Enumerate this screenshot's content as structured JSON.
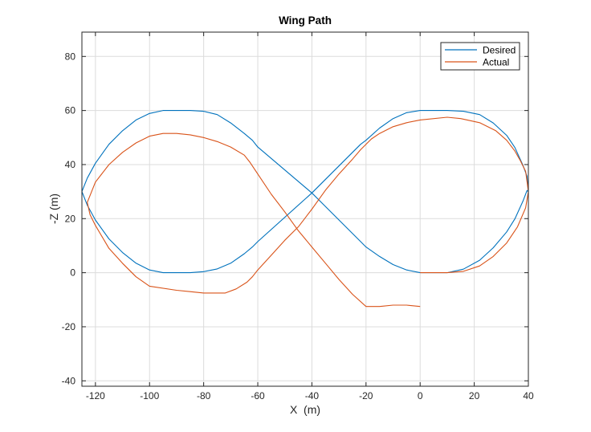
{
  "chart_data": {
    "type": "line",
    "title": "Wing Path",
    "xlabel": "X  (m)",
    "ylabel": "-Z (m)",
    "xlim": [
      -125,
      40
    ],
    "ylim": [
      -42,
      89
    ],
    "xticks": [
      -120,
      -100,
      -80,
      -60,
      -40,
      -20,
      0,
      20,
      40
    ],
    "yticks": [
      -40,
      -20,
      0,
      20,
      40,
      60,
      80
    ],
    "grid": true,
    "legend_position": "top-right",
    "series": [
      {
        "name": "Desired",
        "color": "#0072BD",
        "x": [
          0,
          10,
          16,
          22,
          27,
          32,
          35,
          38,
          39.5,
          40,
          39.5,
          38,
          35,
          32,
          27,
          22,
          16,
          10,
          0,
          -5,
          -10,
          -15,
          -20,
          -22,
          -40,
          -60,
          -62,
          -65,
          -70,
          -75,
          -80,
          -85,
          -95,
          -100,
          -105,
          -110,
          -115,
          -120,
          -123,
          -125,
          -123,
          -120,
          -115,
          -110,
          -105,
          -100,
          -95,
          -85,
          -80,
          -75,
          -70,
          -65,
          -62,
          -60,
          -40,
          -22,
          -20,
          -15,
          -10,
          -5,
          0
        ],
        "y": [
          0,
          0,
          1.3,
          4.6,
          9.2,
          15.1,
          19.9,
          26.5,
          30.4,
          30,
          35.7,
          39.7,
          46.3,
          50.8,
          55.4,
          58.5,
          59.7,
          60,
          60,
          59.2,
          57.0,
          53.5,
          49.0,
          47.5,
          29.5,
          11.5,
          9.5,
          7.0,
          3.5,
          1.4,
          0.4,
          0,
          0,
          1.0,
          3.5,
          7.5,
          12.5,
          19.5,
          25.0,
          30,
          35.0,
          40.5,
          47.5,
          52.5,
          56.5,
          58.9,
          60,
          60,
          59.7,
          58.5,
          55.4,
          51.5,
          49.0,
          46.5,
          29.5,
          11.5,
          9.5,
          6.0,
          3.0,
          1.0,
          0
        ]
      },
      {
        "name": "Actual",
        "color": "#D95319",
        "x": [
          0,
          10,
          16,
          22,
          27,
          32,
          36,
          39,
          40,
          39,
          37,
          35,
          32,
          28,
          22,
          15,
          10,
          0,
          -5,
          -10,
          -15,
          -18,
          -22,
          -25,
          -30,
          -35,
          -40,
          -45,
          -50,
          -55,
          -60,
          -62,
          -64,
          -68,
          -72,
          -76,
          -80,
          -85,
          -90,
          -100,
          -105,
          -110,
          -115,
          -120,
          -122,
          -123,
          -120,
          -115,
          -110,
          -105,
          -100,
          -95,
          -90,
          -85,
          -80,
          -75,
          -70,
          -65,
          -63,
          -60,
          -55,
          -50,
          -45,
          -40,
          -35,
          -30,
          -25,
          -20,
          -15,
          -10,
          -5,
          0
        ],
        "y": [
          0,
          0,
          0.5,
          2.5,
          6.0,
          11.0,
          17.0,
          24.0,
          30.0,
          37.5,
          41.5,
          45.0,
          49.0,
          52.5,
          55.5,
          57.0,
          57.5,
          56.5,
          55.5,
          54.0,
          51.5,
          49.5,
          45.5,
          42.0,
          36.5,
          30.5,
          23.5,
          17.0,
          12.0,
          6.5,
          1.0,
          -1.5,
          -3.5,
          -6.0,
          -7.5,
          -7.5,
          -7.5,
          -7.0,
          -6.5,
          -5.0,
          -1.5,
          3.5,
          9.0,
          17.5,
          21.5,
          26.0,
          33.5,
          40.0,
          44.5,
          48.0,
          50.5,
          51.5,
          51.5,
          51.0,
          50.0,
          48.5,
          46.5,
          43.5,
          41.0,
          36.5,
          29.0,
          22.5,
          15.5,
          9.5,
          3.5,
          -2.5,
          -8.0,
          -12.5,
          -12.5,
          -12.0,
          -12.0,
          -12.5
        ]
      }
    ]
  }
}
